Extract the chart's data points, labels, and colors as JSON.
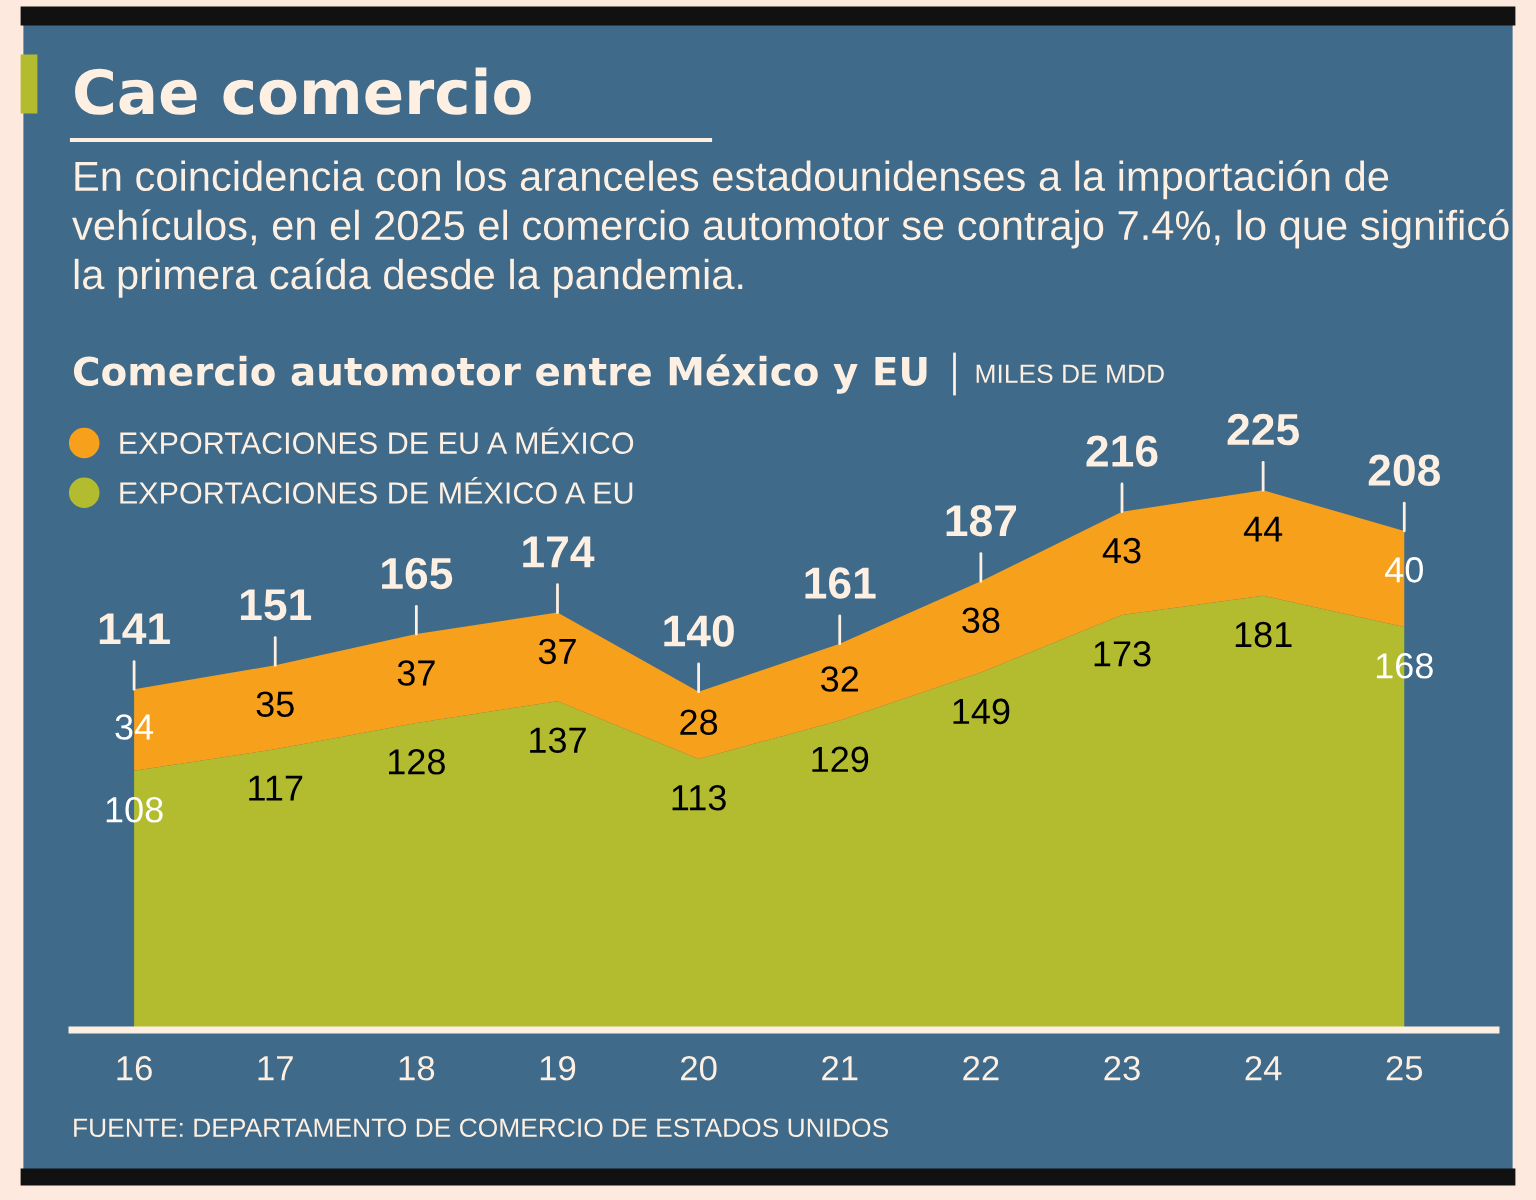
{
  "chart_data": {
    "type": "area",
    "title": "Cae comercio",
    "subtitle": "En coincidencia con los aranceles estadounidenses a la importación de vehículos, en el 2025 el comercio automotor se contrajo 7.4%, lo que significó la primera caída desde la pandemia.",
    "ylabel": "MILES DE MDD",
    "annotations": [
      "Comercio automotor entre México y EU",
      "FUENTE: DEPARTAMENTO DE COMERCIO DE ESTADOS UNIDOS"
    ],
    "categories": [
      "16",
      "17",
      "18",
      "19",
      "20",
      "21",
      "22",
      "23",
      "24",
      "25"
    ],
    "stacked": true,
    "series": [
      {
        "name": "EXPORTACIONES DE MÉXICO A EU",
        "color": "#b3bc2e",
        "values": [
          108,
          117,
          128,
          137,
          113,
          129,
          149,
          173,
          181,
          168
        ]
      },
      {
        "name": "EXPORTACIONES DE EU A MÉXICO",
        "color": "#f6a01c",
        "values": [
          34,
          35,
          37,
          37,
          28,
          32,
          38,
          43,
          44,
          40
        ]
      }
    ],
    "data_labels": true,
    "totals": [
      "141",
      "151",
      "165",
      "174",
      "140",
      "161",
      "187",
      "216",
      "225",
      "208"
    ],
    "legend": "top left"
  }
}
